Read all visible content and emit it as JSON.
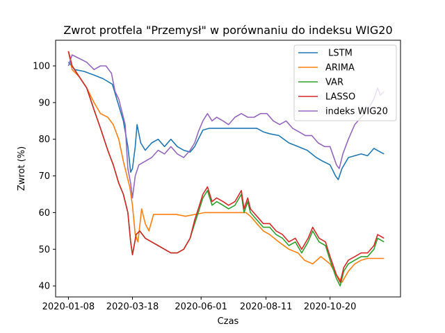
{
  "chart_data": {
    "type": "line",
    "title": "Zwrot protfela \"Przemysł\" w porównaniu do indeksu WIG20",
    "xlabel": "Czas",
    "ylabel": "Zwrot (%)",
    "x_ticks": [
      "2020-01-08",
      "2020-03-18",
      "2020-06-01",
      "2020-08-11",
      "2020-10-20"
    ],
    "y_ticks": [
      40,
      50,
      60,
      70,
      80,
      90,
      100
    ],
    "xlim": [
      "2019-12-25",
      "2021-01-05"
    ],
    "ylim": [
      37,
      107
    ],
    "grid": false,
    "legend_position": "upper-right",
    "series": [
      {
        "name": " LSTM",
        "color": "#1f77b4",
        "points": [
          [
            "2020-01-08",
            101
          ],
          [
            "2020-01-15",
            99
          ],
          [
            "2020-01-25",
            98.5
          ],
          [
            "2020-02-05",
            97.5
          ],
          [
            "2020-02-15",
            96.5
          ],
          [
            "2020-02-25",
            95
          ],
          [
            "2020-03-02",
            90
          ],
          [
            "2020-03-08",
            85
          ],
          [
            "2020-03-13",
            78
          ],
          [
            "2020-03-16",
            71
          ],
          [
            "2020-03-18",
            72
          ],
          [
            "2020-03-21",
            78
          ],
          [
            "2020-03-23",
            84
          ],
          [
            "2020-03-27",
            79
          ],
          [
            "2020-04-01",
            77
          ],
          [
            "2020-04-08",
            79
          ],
          [
            "2020-04-15",
            80
          ],
          [
            "2020-04-22",
            78
          ],
          [
            "2020-04-29",
            80
          ],
          [
            "2020-05-06",
            78
          ],
          [
            "2020-05-13",
            77
          ],
          [
            "2020-05-20",
            76.5
          ],
          [
            "2020-05-25",
            78
          ],
          [
            "2020-05-29",
            80
          ],
          [
            "2020-06-03",
            82.5
          ],
          [
            "2020-06-10",
            83
          ],
          [
            "2020-06-20",
            83
          ],
          [
            "2020-07-01",
            83
          ],
          [
            "2020-07-15",
            83
          ],
          [
            "2020-07-25",
            83
          ],
          [
            "2020-08-01",
            83
          ],
          [
            "2020-08-08",
            82
          ],
          [
            "2020-08-15",
            81.5
          ],
          [
            "2020-08-25",
            81
          ],
          [
            "2020-09-05",
            79
          ],
          [
            "2020-09-15",
            78
          ],
          [
            "2020-09-25",
            77
          ],
          [
            "2020-10-05",
            75
          ],
          [
            "2020-10-12",
            74
          ],
          [
            "2020-10-20",
            73
          ],
          [
            "2020-10-26",
            70
          ],
          [
            "2020-10-29",
            69
          ],
          [
            "2020-11-02",
            72
          ],
          [
            "2020-11-09",
            75
          ],
          [
            "2020-11-16",
            75.5
          ],
          [
            "2020-11-23",
            76
          ],
          [
            "2020-11-30",
            75.5
          ],
          [
            "2020-12-07",
            77.5
          ],
          [
            "2020-12-14",
            76.5
          ],
          [
            "2020-12-18",
            76
          ]
        ]
      },
      {
        "name": "ARIMA",
        "color": "#ff7f0e",
        "points": [
          [
            "2020-01-08",
            104
          ],
          [
            "2020-01-12",
            99
          ],
          [
            "2020-01-20",
            97
          ],
          [
            "2020-01-28",
            94
          ],
          [
            "2020-02-05",
            90
          ],
          [
            "2020-02-12",
            87
          ],
          [
            "2020-02-20",
            86
          ],
          [
            "2020-02-26",
            84
          ],
          [
            "2020-03-03",
            80
          ],
          [
            "2020-03-08",
            74
          ],
          [
            "2020-03-11",
            71
          ],
          [
            "2020-03-15",
            67
          ],
          [
            "2020-03-18",
            62
          ],
          [
            "2020-03-21",
            54
          ],
          [
            "2020-03-24",
            52
          ],
          [
            "2020-03-28",
            61
          ],
          [
            "2020-04-01",
            57
          ],
          [
            "2020-04-05",
            55
          ],
          [
            "2020-04-10",
            59.5
          ],
          [
            "2020-04-20",
            59.5
          ],
          [
            "2020-05-05",
            59.5
          ],
          [
            "2020-05-15",
            59
          ],
          [
            "2020-05-25",
            59.5
          ],
          [
            "2020-06-05",
            60
          ],
          [
            "2020-06-20",
            60
          ],
          [
            "2020-07-01",
            60
          ],
          [
            "2020-07-10",
            60
          ],
          [
            "2020-07-20",
            60
          ],
          [
            "2020-07-25",
            59
          ],
          [
            "2020-08-01",
            57
          ],
          [
            "2020-08-08",
            55
          ],
          [
            "2020-08-15",
            54
          ],
          [
            "2020-08-25",
            52
          ],
          [
            "2020-09-05",
            50
          ],
          [
            "2020-09-15",
            49
          ],
          [
            "2020-09-22",
            47
          ],
          [
            "2020-10-01",
            46
          ],
          [
            "2020-10-10",
            48
          ],
          [
            "2020-10-20",
            46
          ],
          [
            "2020-10-27",
            43
          ],
          [
            "2020-11-02",
            41
          ],
          [
            "2020-11-09",
            44
          ],
          [
            "2020-11-16",
            46
          ],
          [
            "2020-11-23",
            47
          ],
          [
            "2020-11-30",
            47.5
          ],
          [
            "2020-12-07",
            47.5
          ],
          [
            "2020-12-18",
            47.5
          ]
        ]
      },
      {
        "name": "VAR",
        "color": "#2ca02c",
        "points": [
          [
            "2020-01-08",
            104
          ],
          [
            "2020-01-12",
            100
          ],
          [
            "2020-01-20",
            97
          ],
          [
            "2020-01-28",
            94
          ],
          [
            "2020-02-05",
            88
          ],
          [
            "2020-02-12",
            83
          ],
          [
            "2020-02-20",
            77
          ],
          [
            "2020-02-26",
            73
          ],
          [
            "2020-03-03",
            68
          ],
          [
            "2020-03-08",
            65
          ],
          [
            "2020-03-13",
            60
          ],
          [
            "2020-03-16",
            52
          ],
          [
            "2020-03-18",
            48.5
          ],
          [
            "2020-03-22",
            54
          ],
          [
            "2020-03-26",
            55
          ],
          [
            "2020-04-01",
            53
          ],
          [
            "2020-04-08",
            52
          ],
          [
            "2020-04-15",
            51
          ],
          [
            "2020-04-22",
            50
          ],
          [
            "2020-04-29",
            49
          ],
          [
            "2020-05-06",
            49
          ],
          [
            "2020-05-13",
            50
          ],
          [
            "2020-05-20",
            53
          ],
          [
            "2020-05-25",
            57
          ],
          [
            "2020-05-29",
            60
          ],
          [
            "2020-06-03",
            64
          ],
          [
            "2020-06-08",
            66
          ],
          [
            "2020-06-13",
            62
          ],
          [
            "2020-06-18",
            63
          ],
          [
            "2020-06-25",
            62
          ],
          [
            "2020-07-01",
            61
          ],
          [
            "2020-07-08",
            62
          ],
          [
            "2020-07-15",
            65
          ],
          [
            "2020-07-18",
            60
          ],
          [
            "2020-07-22",
            63
          ],
          [
            "2020-07-25",
            60
          ],
          [
            "2020-08-01",
            58
          ],
          [
            "2020-08-08",
            56
          ],
          [
            "2020-08-15",
            56
          ],
          [
            "2020-08-22",
            54
          ],
          [
            "2020-08-29",
            53
          ],
          [
            "2020-09-05",
            51
          ],
          [
            "2020-09-12",
            52
          ],
          [
            "2020-09-19",
            49
          ],
          [
            "2020-09-26",
            52
          ],
          [
            "2020-10-01",
            55
          ],
          [
            "2020-10-08",
            52
          ],
          [
            "2020-10-15",
            51
          ],
          [
            "2020-10-20",
            47
          ],
          [
            "2020-10-27",
            42
          ],
          [
            "2020-10-31",
            40
          ],
          [
            "2020-11-04",
            44
          ],
          [
            "2020-11-09",
            46
          ],
          [
            "2020-11-16",
            47
          ],
          [
            "2020-11-23",
            48
          ],
          [
            "2020-11-30",
            48
          ],
          [
            "2020-12-07",
            50
          ],
          [
            "2020-12-11",
            53
          ],
          [
            "2020-12-18",
            52
          ]
        ]
      },
      {
        "name": "LASSO",
        "color": "#d62728",
        "points": [
          [
            "2020-01-08",
            104
          ],
          [
            "2020-01-12",
            100
          ],
          [
            "2020-01-20",
            97
          ],
          [
            "2020-01-28",
            94
          ],
          [
            "2020-02-05",
            88
          ],
          [
            "2020-02-12",
            83
          ],
          [
            "2020-02-20",
            77
          ],
          [
            "2020-02-26",
            73
          ],
          [
            "2020-03-03",
            68
          ],
          [
            "2020-03-08",
            65
          ],
          [
            "2020-03-13",
            60
          ],
          [
            "2020-03-16",
            52
          ],
          [
            "2020-03-18",
            48.5
          ],
          [
            "2020-03-22",
            54
          ],
          [
            "2020-03-26",
            55
          ],
          [
            "2020-04-01",
            53
          ],
          [
            "2020-04-08",
            52
          ],
          [
            "2020-04-15",
            51
          ],
          [
            "2020-04-22",
            50
          ],
          [
            "2020-04-29",
            49
          ],
          [
            "2020-05-06",
            49
          ],
          [
            "2020-05-13",
            50
          ],
          [
            "2020-05-20",
            53
          ],
          [
            "2020-05-25",
            58
          ],
          [
            "2020-05-29",
            61
          ],
          [
            "2020-06-03",
            65
          ],
          [
            "2020-06-08",
            67
          ],
          [
            "2020-06-13",
            63
          ],
          [
            "2020-06-18",
            64
          ],
          [
            "2020-06-25",
            63
          ],
          [
            "2020-07-01",
            62
          ],
          [
            "2020-07-08",
            63
          ],
          [
            "2020-07-15",
            66
          ],
          [
            "2020-07-18",
            61
          ],
          [
            "2020-07-22",
            64
          ],
          [
            "2020-07-25",
            61
          ],
          [
            "2020-08-01",
            59
          ],
          [
            "2020-08-08",
            57
          ],
          [
            "2020-08-15",
            57
          ],
          [
            "2020-08-22",
            55
          ],
          [
            "2020-08-29",
            54
          ],
          [
            "2020-09-05",
            52
          ],
          [
            "2020-09-12",
            53
          ],
          [
            "2020-09-19",
            50
          ],
          [
            "2020-09-26",
            53
          ],
          [
            "2020-10-01",
            56
          ],
          [
            "2020-10-08",
            53
          ],
          [
            "2020-10-15",
            52
          ],
          [
            "2020-10-20",
            48
          ],
          [
            "2020-10-27",
            43
          ],
          [
            "2020-10-31",
            41
          ],
          [
            "2020-11-04",
            45
          ],
          [
            "2020-11-09",
            47
          ],
          [
            "2020-11-16",
            48
          ],
          [
            "2020-11-23",
            49
          ],
          [
            "2020-11-30",
            49
          ],
          [
            "2020-12-07",
            51
          ],
          [
            "2020-12-11",
            54
          ],
          [
            "2020-12-18",
            53
          ]
        ]
      },
      {
        "name": "indeks WIG20",
        "color": "#9467bd",
        "points": [
          [
            "2020-01-08",
            100
          ],
          [
            "2020-01-12",
            103
          ],
          [
            "2020-01-20",
            102
          ],
          [
            "2020-01-28",
            101
          ],
          [
            "2020-02-05",
            99
          ],
          [
            "2020-02-12",
            100
          ],
          [
            "2020-02-18",
            100
          ],
          [
            "2020-02-24",
            98
          ],
          [
            "2020-02-28",
            93
          ],
          [
            "2020-03-03",
            91
          ],
          [
            "2020-03-06",
            88
          ],
          [
            "2020-03-10",
            84
          ],
          [
            "2020-03-13",
            72
          ],
          [
            "2020-03-16",
            68
          ],
          [
            "2020-03-18",
            64
          ],
          [
            "2020-03-21",
            70
          ],
          [
            "2020-03-25",
            73
          ],
          [
            "2020-04-01",
            74
          ],
          [
            "2020-04-08",
            75
          ],
          [
            "2020-04-15",
            77
          ],
          [
            "2020-04-22",
            76
          ],
          [
            "2020-04-29",
            78
          ],
          [
            "2020-05-06",
            76
          ],
          [
            "2020-05-13",
            75
          ],
          [
            "2020-05-20",
            77
          ],
          [
            "2020-05-25",
            79
          ],
          [
            "2020-05-29",
            82
          ],
          [
            "2020-06-03",
            85
          ],
          [
            "2020-06-08",
            87
          ],
          [
            "2020-06-13",
            85
          ],
          [
            "2020-06-18",
            86
          ],
          [
            "2020-06-25",
            85
          ],
          [
            "2020-07-01",
            84
          ],
          [
            "2020-07-08",
            86
          ],
          [
            "2020-07-15",
            87
          ],
          [
            "2020-07-22",
            86
          ],
          [
            "2020-07-29",
            86
          ],
          [
            "2020-08-05",
            87
          ],
          [
            "2020-08-12",
            87
          ],
          [
            "2020-08-19",
            85
          ],
          [
            "2020-08-26",
            84
          ],
          [
            "2020-09-02",
            85
          ],
          [
            "2020-09-09",
            83
          ],
          [
            "2020-09-16",
            82
          ],
          [
            "2020-09-23",
            81
          ],
          [
            "2020-09-30",
            81
          ],
          [
            "2020-10-07",
            79
          ],
          [
            "2020-10-14",
            78
          ],
          [
            "2020-10-20",
            78
          ],
          [
            "2020-10-27",
            73
          ],
          [
            "2020-10-30",
            72
          ],
          [
            "2020-11-03",
            76
          ],
          [
            "2020-11-09",
            80
          ],
          [
            "2020-11-16",
            84
          ],
          [
            "2020-11-23",
            86
          ],
          [
            "2020-11-30",
            88
          ],
          [
            "2020-12-07",
            91
          ],
          [
            "2020-12-11",
            94
          ],
          [
            "2020-12-14",
            92
          ],
          [
            "2020-12-18",
            93
          ]
        ]
      }
    ]
  }
}
